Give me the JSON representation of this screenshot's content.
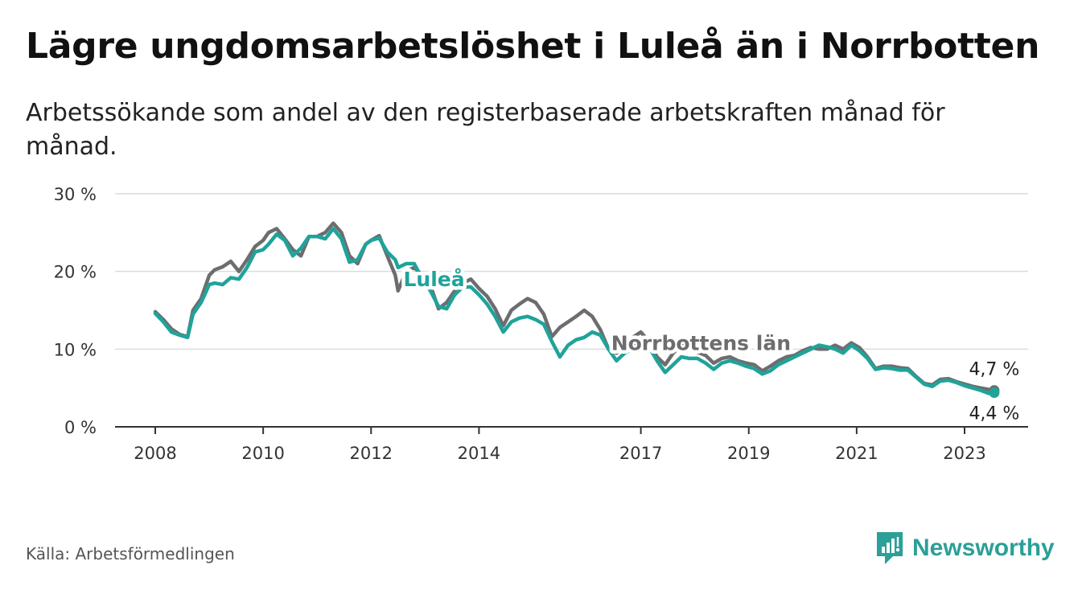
{
  "title": "Lägre ungdomsarbetslöshet i Luleå än i Norrbotten",
  "subtitle": "Arbetssökande som andel av den registerbaserade arbetskraften månad för månad.",
  "source": "Källa: Arbetsförmedlingen",
  "brand": "Newsworthy",
  "colors": {
    "lulea": "#1fa39a",
    "norrbotten": "#6d6d6f",
    "brand": "#2b9f98"
  },
  "chart_data": {
    "type": "line",
    "title": "Lägre ungdomsarbetslöshet i Luleå än i Norrbotten",
    "xlabel": "",
    "ylabel": "",
    "xlim": [
      2008,
      2023.6
    ],
    "ylim": [
      0,
      30
    ],
    "grid": true,
    "y_ticks": [
      0,
      10,
      20,
      30
    ],
    "y_tick_labels": [
      "0 %",
      "10 %",
      "20 %",
      "30 %"
    ],
    "x_ticks": [
      2008,
      2010,
      2012,
      2014,
      2017,
      2019,
      2021,
      2023
    ],
    "x_tick_labels": [
      "2008",
      "2010",
      "2012",
      "2014",
      "2017",
      "2019",
      "2021",
      "2023"
    ],
    "series": [
      {
        "name": "Norrbottens län",
        "label": "Norrbottens län",
        "end_label": "4,7 %",
        "x": [
          2008.0,
          2008.15,
          2008.3,
          2008.45,
          2008.6,
          2008.7,
          2008.85,
          2009.0,
          2009.1,
          2009.25,
          2009.4,
          2009.55,
          2009.7,
          2009.85,
          2010.0,
          2010.1,
          2010.25,
          2010.4,
          2010.55,
          2010.7,
          2010.85,
          2011.0,
          2011.15,
          2011.3,
          2011.45,
          2011.6,
          2011.75,
          2011.9,
          2012.0,
          2012.15,
          2012.3,
          2012.45,
          2012.5,
          2012.65,
          2012.8,
          2012.95,
          2013.1,
          2013.25,
          2013.4,
          2013.55,
          2013.7,
          2013.85,
          2014.0,
          2014.15,
          2014.3,
          2014.45,
          2014.6,
          2014.75,
          2014.9,
          2015.05,
          2015.2,
          2015.35,
          2015.5,
          2015.65,
          2015.8,
          2015.95,
          2016.1,
          2016.25,
          2016.4,
          2016.55,
          2016.7,
          2016.85,
          2017.0,
          2017.15,
          2017.3,
          2017.45,
          2017.6,
          2017.75,
          2017.9,
          2018.05,
          2018.2,
          2018.35,
          2018.5,
          2018.65,
          2018.8,
          2018.95,
          2019.1,
          2019.25,
          2019.4,
          2019.55,
          2019.7,
          2019.85,
          2020.0,
          2020.15,
          2020.3,
          2020.45,
          2020.6,
          2020.75,
          2020.9,
          2021.05,
          2021.2,
          2021.35,
          2021.5,
          2021.65,
          2021.8,
          2021.95,
          2022.1,
          2022.25,
          2022.4,
          2022.55,
          2022.7,
          2022.85,
          2023.0,
          2023.15,
          2023.3,
          2023.45,
          2023.55
        ],
        "y": [
          14.8,
          13.8,
          12.6,
          11.9,
          11.6,
          15.0,
          16.5,
          19.5,
          20.2,
          20.6,
          21.3,
          20.0,
          21.5,
          23.2,
          24.0,
          25.0,
          25.5,
          24.2,
          22.8,
          22.0,
          24.5,
          24.5,
          25.0,
          26.2,
          25.0,
          22.0,
          21.0,
          23.5,
          24.0,
          24.6,
          22.0,
          19.5,
          17.5,
          20.0,
          20.5,
          19.5,
          18.2,
          15.2,
          16.0,
          17.5,
          18.5,
          19.0,
          17.8,
          16.8,
          15.2,
          13.0,
          15.0,
          15.8,
          16.5,
          16.0,
          14.5,
          11.6,
          12.8,
          13.5,
          14.2,
          15.0,
          14.2,
          12.5,
          10.0,
          9.5,
          11.0,
          11.5,
          12.2,
          11.0,
          9.0,
          8.0,
          9.5,
          10.5,
          10.0,
          9.6,
          9.2,
          8.2,
          8.8,
          9.0,
          8.5,
          8.2,
          8.0,
          7.2,
          7.8,
          8.5,
          9.0,
          9.2,
          9.8,
          10.2,
          10.0,
          10.0,
          10.5,
          10.0,
          10.8,
          10.2,
          9.0,
          7.5,
          7.8,
          7.8,
          7.6,
          7.5,
          6.5,
          5.6,
          5.4,
          6.1,
          6.2,
          5.8,
          5.5,
          5.2,
          5.0,
          4.8,
          4.7
        ]
      },
      {
        "name": "Luleå",
        "label": "Luleå",
        "end_label": "4,4 %",
        "x": [
          2008.0,
          2008.15,
          2008.3,
          2008.45,
          2008.6,
          2008.7,
          2008.85,
          2009.0,
          2009.1,
          2009.25,
          2009.4,
          2009.55,
          2009.7,
          2009.85,
          2010.0,
          2010.1,
          2010.25,
          2010.4,
          2010.55,
          2010.7,
          2010.85,
          2011.0,
          2011.15,
          2011.3,
          2011.45,
          2011.6,
          2011.75,
          2011.9,
          2012.0,
          2012.15,
          2012.3,
          2012.45,
          2012.5,
          2012.65,
          2012.8,
          2012.95,
          2013.1,
          2013.25,
          2013.4,
          2013.55,
          2013.7,
          2013.85,
          2014.0,
          2014.15,
          2014.3,
          2014.45,
          2014.6,
          2014.75,
          2014.9,
          2015.05,
          2015.2,
          2015.35,
          2015.5,
          2015.65,
          2015.8,
          2015.95,
          2016.1,
          2016.25,
          2016.4,
          2016.55,
          2016.7,
          2016.85,
          2017.0,
          2017.15,
          2017.3,
          2017.45,
          2017.6,
          2017.75,
          2017.9,
          2018.05,
          2018.2,
          2018.35,
          2018.5,
          2018.65,
          2018.8,
          2018.95,
          2019.1,
          2019.25,
          2019.4,
          2019.55,
          2019.7,
          2019.85,
          2020.0,
          2020.15,
          2020.3,
          2020.45,
          2020.6,
          2020.75,
          2020.9,
          2021.05,
          2021.2,
          2021.35,
          2021.5,
          2021.65,
          2021.8,
          2021.95,
          2022.1,
          2022.25,
          2022.4,
          2022.55,
          2022.7,
          2022.85,
          2023.0,
          2023.15,
          2023.3,
          2023.45,
          2023.55
        ],
        "y": [
          14.6,
          13.5,
          12.2,
          11.8,
          11.5,
          14.5,
          16.0,
          18.3,
          18.5,
          18.3,
          19.2,
          19.0,
          20.5,
          22.5,
          22.8,
          23.5,
          24.8,
          24.0,
          22.0,
          23.0,
          24.5,
          24.5,
          24.2,
          25.5,
          24.2,
          21.2,
          21.5,
          23.5,
          24.0,
          24.3,
          22.5,
          21.5,
          20.5,
          21.0,
          21.0,
          19.0,
          17.5,
          15.5,
          15.2,
          17.0,
          18.0,
          18.0,
          17.0,
          15.8,
          14.2,
          12.2,
          13.5,
          14.0,
          14.2,
          13.8,
          13.2,
          11.0,
          9.0,
          10.5,
          11.2,
          11.5,
          12.2,
          11.8,
          10.0,
          8.5,
          9.5,
          10.0,
          11.2,
          10.3,
          8.5,
          7.0,
          8.0,
          9.0,
          8.8,
          8.8,
          8.2,
          7.4,
          8.2,
          8.5,
          8.2,
          7.8,
          7.5,
          6.8,
          7.2,
          8.0,
          8.5,
          9.0,
          9.5,
          10.0,
          10.5,
          10.3,
          10.0,
          9.5,
          10.5,
          9.8,
          8.8,
          7.4,
          7.6,
          7.5,
          7.3,
          7.3,
          6.4,
          5.5,
          5.2,
          5.9,
          6.0,
          5.7,
          5.3,
          5.0,
          4.7,
          4.3,
          4.4
        ]
      }
    ]
  }
}
